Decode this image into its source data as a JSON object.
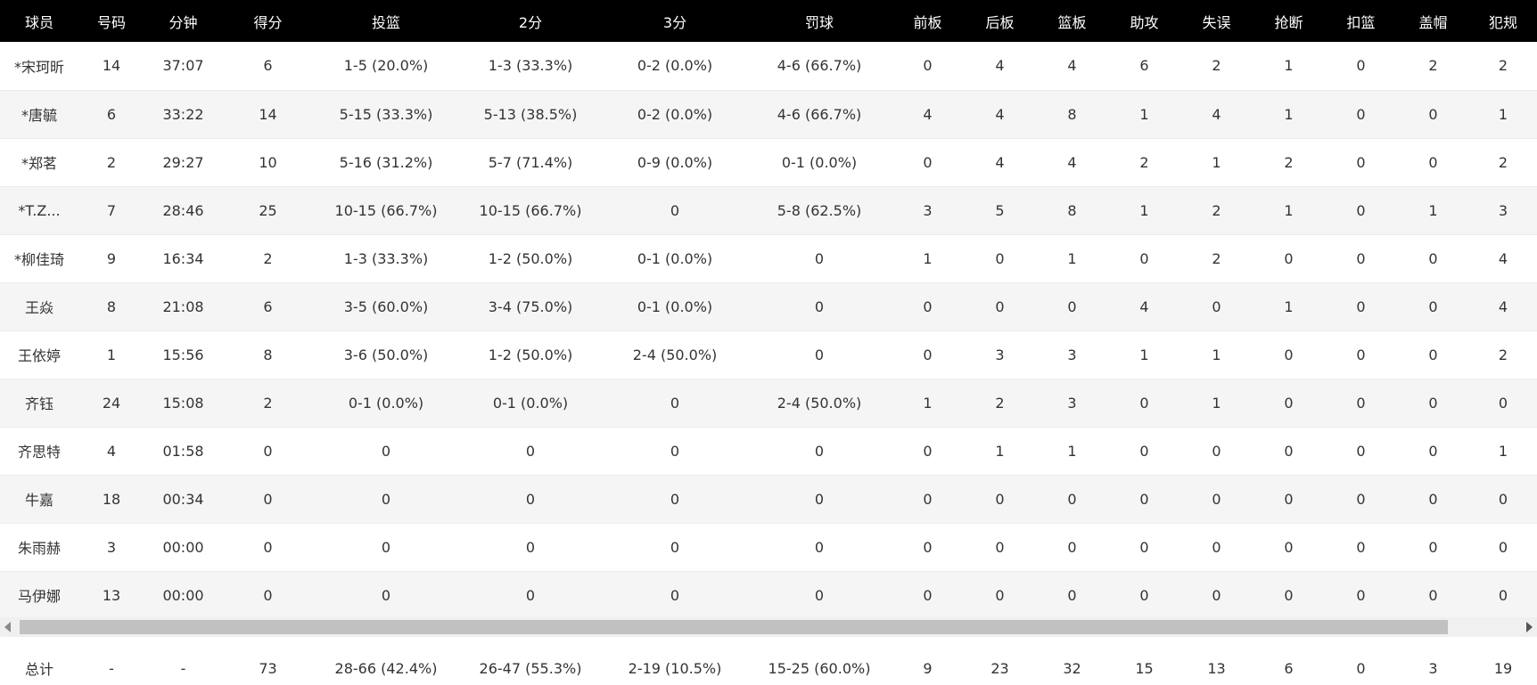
{
  "headers": [
    "球员",
    "号码",
    "分钟",
    "得分",
    "投篮",
    "2分",
    "3分",
    "罚球",
    "前板",
    "后板",
    "篮板",
    "助攻",
    "失误",
    "抢断",
    "扣篮",
    "盖帽",
    "犯规"
  ],
  "players": [
    [
      "*宋珂昕",
      "14",
      "37:07",
      "6",
      "1-5 (20.0%)",
      "1-3 (33.3%)",
      "0-2 (0.0%)",
      "4-6 (66.7%)",
      "0",
      "4",
      "4",
      "6",
      "2",
      "1",
      "0",
      "2",
      "2"
    ],
    [
      "*唐毓",
      "6",
      "33:22",
      "14",
      "5-15 (33.3%)",
      "5-13 (38.5%)",
      "0-2 (0.0%)",
      "4-6 (66.7%)",
      "4",
      "4",
      "8",
      "1",
      "4",
      "1",
      "0",
      "0",
      "1"
    ],
    [
      "*郑茗",
      "2",
      "29:27",
      "10",
      "5-16 (31.2%)",
      "5-7 (71.4%)",
      "0-9 (0.0%)",
      "0-1 (0.0%)",
      "0",
      "4",
      "4",
      "2",
      "1",
      "2",
      "0",
      "0",
      "2"
    ],
    [
      "*T.Z...",
      "7",
      "28:46",
      "25",
      "10-15 (66.7%)",
      "10-15 (66.7%)",
      "0",
      "5-8 (62.5%)",
      "3",
      "5",
      "8",
      "1",
      "2",
      "1",
      "0",
      "1",
      "3"
    ],
    [
      "*柳佳琦",
      "9",
      "16:34",
      "2",
      "1-3 (33.3%)",
      "1-2 (50.0%)",
      "0-1 (0.0%)",
      "0",
      "1",
      "0",
      "1",
      "0",
      "2",
      "0",
      "0",
      "0",
      "4"
    ],
    [
      "王焱",
      "8",
      "21:08",
      "6",
      "3-5 (60.0%)",
      "3-4 (75.0%)",
      "0-1 (0.0%)",
      "0",
      "0",
      "0",
      "0",
      "4",
      "0",
      "1",
      "0",
      "0",
      "4"
    ],
    [
      "王依婷",
      "1",
      "15:56",
      "8",
      "3-6 (50.0%)",
      "1-2 (50.0%)",
      "2-4 (50.0%)",
      "0",
      "0",
      "3",
      "3",
      "1",
      "1",
      "0",
      "0",
      "0",
      "2"
    ],
    [
      "齐钰",
      "24",
      "15:08",
      "2",
      "0-1 (0.0%)",
      "0-1 (0.0%)",
      "0",
      "2-4 (50.0%)",
      "1",
      "2",
      "3",
      "0",
      "1",
      "0",
      "0",
      "0",
      "0"
    ],
    [
      "齐思特",
      "4",
      "01:58",
      "0",
      "0",
      "0",
      "0",
      "0",
      "0",
      "1",
      "1",
      "0",
      "0",
      "0",
      "0",
      "0",
      "1"
    ],
    [
      "牛嘉",
      "18",
      "00:34",
      "0",
      "0",
      "0",
      "0",
      "0",
      "0",
      "0",
      "0",
      "0",
      "0",
      "0",
      "0",
      "0",
      "0"
    ],
    [
      "朱雨赫",
      "3",
      "00:00",
      "0",
      "0",
      "0",
      "0",
      "0",
      "0",
      "0",
      "0",
      "0",
      "0",
      "0",
      "0",
      "0",
      "0"
    ],
    [
      "马伊娜",
      "13",
      "00:00",
      "0",
      "0",
      "0",
      "0",
      "0",
      "0",
      "0",
      "0",
      "0",
      "0",
      "0",
      "0",
      "0",
      "0"
    ]
  ],
  "totals": [
    "总计",
    "-",
    "-",
    "73",
    "28-66 (42.4%)",
    "26-47 (55.3%)",
    "2-19 (10.5%)",
    "15-25 (60.0%)",
    "9",
    "23",
    "32",
    "15",
    "13",
    "6",
    "0",
    "3",
    "19"
  ],
  "colors": {
    "header_bg": "#000000",
    "header_text": "#ffffff",
    "row_alt": "#f5f5f5",
    "totals_bg": "#e9e9e9",
    "scroll_thumb": "#c1c1c1"
  },
  "icons": {
    "scroll_left": "scroll-left-arrow-icon",
    "scroll_right": "scroll-right-arrow-icon"
  }
}
